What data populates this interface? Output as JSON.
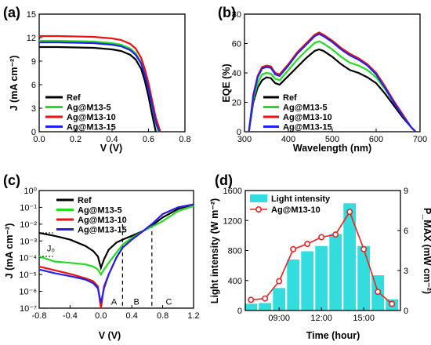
{
  "chart_data": [
    {
      "panel": "(a)",
      "type": "line",
      "xlabel": "V (V)",
      "ylabel": "J (mA cm⁻²)",
      "xlim": [
        0.0,
        0.8
      ],
      "ylim": [
        0,
        15
      ],
      "xticks": [
        "0.0",
        "0.2",
        "0.4",
        "0.6",
        "0.8"
      ],
      "yticks": [
        "0",
        "3",
        "6",
        "9",
        "12",
        "15"
      ],
      "legend_position": "bottom-left",
      "series": [
        {
          "name": "Ref",
          "color": "#000000",
          "x": [
            0,
            0.1,
            0.2,
            0.3,
            0.4,
            0.45,
            0.5,
            0.53,
            0.56,
            0.58,
            0.6,
            0.62,
            0.64
          ],
          "y": [
            10.8,
            10.8,
            10.75,
            10.7,
            10.5,
            10.3,
            9.8,
            9.2,
            8.0,
            6.5,
            4.5,
            2.2,
            0
          ]
        },
        {
          "name": "Ag@M13-5",
          "color": "#22dd22",
          "x": [
            0,
            0.1,
            0.2,
            0.3,
            0.4,
            0.45,
            0.5,
            0.53,
            0.56,
            0.58,
            0.6,
            0.62,
            0.64,
            0.655
          ],
          "y": [
            11.6,
            11.6,
            11.55,
            11.5,
            11.3,
            11.1,
            10.6,
            10.0,
            8.8,
            7.3,
            5.5,
            3.3,
            1.0,
            0
          ]
        },
        {
          "name": "Ag@M13-10",
          "color": "#ee1111",
          "x": [
            0,
            0.1,
            0.2,
            0.3,
            0.4,
            0.45,
            0.5,
            0.53,
            0.56,
            0.58,
            0.6,
            0.62,
            0.64,
            0.665
          ],
          "y": [
            12.2,
            12.2,
            12.15,
            12.1,
            11.9,
            11.7,
            11.2,
            10.6,
            9.4,
            8.0,
            6.2,
            4.0,
            1.8,
            0
          ]
        },
        {
          "name": "Ag@M13-15",
          "color": "#2222ee",
          "x": [
            0,
            0.1,
            0.2,
            0.3,
            0.4,
            0.45,
            0.5,
            0.53,
            0.56,
            0.58,
            0.6,
            0.62,
            0.64,
            0.66
          ],
          "y": [
            11.4,
            11.4,
            11.35,
            11.3,
            11.1,
            10.9,
            10.4,
            9.8,
            8.7,
            7.2,
            5.5,
            3.4,
            1.2,
            0
          ]
        }
      ]
    },
    {
      "panel": "(b)",
      "type": "line",
      "xlabel": "Wavelength (nm)",
      "ylabel": "EQE (%)",
      "xlim": [
        300,
        700
      ],
      "ylim": [
        0,
        80
      ],
      "xticks": [
        "300",
        "400",
        "500",
        "600",
        "700"
      ],
      "yticks": [
        "0",
        "20",
        "40",
        "60",
        "80"
      ],
      "legend_position": "bottom-left",
      "series": [
        {
          "name": "Ref",
          "color": "#000000",
          "x": [
            310,
            320,
            330,
            340,
            350,
            360,
            370,
            380,
            400,
            420,
            440,
            460,
            470,
            480,
            500,
            520,
            540,
            560,
            580,
            600,
            620,
            640,
            660,
            680,
            690
          ],
          "y": [
            0,
            20,
            30,
            35,
            37,
            36.5,
            33,
            32,
            38,
            44,
            50,
            55,
            56,
            55,
            51,
            46,
            42,
            40,
            37,
            33,
            26,
            18,
            10,
            3,
            0
          ]
        },
        {
          "name": "Ag@M13-5",
          "color": "#22dd22",
          "x": [
            310,
            320,
            330,
            340,
            350,
            360,
            370,
            380,
            400,
            420,
            440,
            460,
            470,
            480,
            500,
            520,
            540,
            560,
            580,
            600,
            620,
            640,
            660,
            680,
            690
          ],
          "y": [
            0,
            22,
            33,
            39,
            40,
            39.5,
            36,
            35,
            42,
            49,
            55,
            60.5,
            61.5,
            60,
            56,
            51,
            47,
            45,
            42,
            37,
            29,
            20,
            11,
            3,
            0
          ]
        },
        {
          "name": "Ag@M13-10",
          "color": "#ee1111",
          "x": [
            310,
            320,
            330,
            340,
            350,
            360,
            370,
            380,
            400,
            420,
            440,
            460,
            470,
            480,
            500,
            520,
            540,
            560,
            580,
            600,
            620,
            640,
            660,
            680,
            690
          ],
          "y": [
            0,
            25,
            38,
            44,
            45,
            44.5,
            40,
            39,
            46,
            54,
            60,
            66,
            67.5,
            66,
            62,
            57,
            53,
            50,
            46,
            40,
            31,
            21,
            12,
            3,
            0
          ]
        },
        {
          "name": "Ag@M13-15",
          "color": "#2222ee",
          "x": [
            310,
            320,
            330,
            340,
            350,
            360,
            370,
            380,
            400,
            420,
            440,
            460,
            470,
            480,
            500,
            520,
            540,
            560,
            580,
            600,
            620,
            640,
            660,
            680,
            690
          ],
          "y": [
            0,
            24,
            37,
            43,
            44,
            43.5,
            39,
            38,
            45,
            53,
            59,
            65,
            66.5,
            65,
            61,
            56,
            52,
            49,
            45,
            39,
            30,
            20,
            11,
            3,
            0
          ]
        }
      ]
    },
    {
      "panel": "(c)",
      "type": "line",
      "xlabel": "V (V)",
      "ylabel": "J (mA cm⁻²)",
      "yscale": "log",
      "xlim": [
        -0.8,
        1.2
      ],
      "ylim": [
        1e-07,
        1
      ],
      "xticks": [
        "-0.8",
        "-0.4",
        "0.0",
        "0.4",
        "0.8",
        "1.2"
      ],
      "yticks": [
        "10⁰",
        "10⁻¹",
        "10⁻²",
        "10⁻³",
        "10⁻⁴",
        "10⁻⁵",
        "10⁻⁶",
        "10⁻⁷"
      ],
      "legend_position": "top-left",
      "annotations": {
        "j0_label": "J₀",
        "regions": [
          "A",
          "B",
          "C"
        ],
        "region_boundaries_v": [
          0.28,
          0.66
        ]
      },
      "series": [
        {
          "name": "Ref",
          "color": "#000000",
          "x": [
            -0.8,
            -0.6,
            -0.4,
            -0.2,
            -0.1,
            -0.04,
            0.0,
            0.04,
            0.1,
            0.2,
            0.28,
            0.4,
            0.55,
            0.66,
            0.8,
            1.0,
            1.2
          ],
          "y": [
            0.003,
            0.002,
            0.0012,
            0.0005,
            0.00025,
            0.00012,
            2.5e-05,
            8e-05,
            0.0003,
            0.0008,
            0.0012,
            0.002,
            0.004,
            0.008,
            0.025,
            0.08,
            0.15
          ]
        },
        {
          "name": "Ag@M13-5",
          "color": "#22dd22",
          "x": [
            -0.8,
            -0.6,
            -0.4,
            -0.2,
            -0.1,
            -0.04,
            0.0,
            0.04,
            0.1,
            0.2,
            0.28,
            0.4,
            0.55,
            0.66,
            0.8,
            1.0,
            1.2
          ],
          "y": [
            0.00012,
            6e-05,
            5e-05,
            4e-05,
            3e-05,
            2e-05,
            1e-05,
            2e-05,
            5e-05,
            0.0002,
            0.0006,
            0.0015,
            0.004,
            0.007,
            0.015,
            0.06,
            0.12
          ]
        },
        {
          "name": "Ag@M13-10",
          "color": "#ee1111",
          "x": [
            -0.8,
            -0.6,
            -0.4,
            -0.2,
            -0.1,
            -0.04,
            0.0,
            0.04,
            0.1,
            0.2,
            0.28,
            0.4,
            0.55,
            0.66,
            0.8,
            1.0,
            1.2
          ],
          "y": [
            3e-05,
            1.8e-05,
            1.1e-05,
            6e-06,
            4e-06,
            2e-06,
            1e-07,
            2e-06,
            1e-05,
            0.0001,
            0.0004,
            0.0012,
            0.004,
            0.01,
            0.04,
            0.1,
            0.15
          ]
        },
        {
          "name": "Ag@M13-15",
          "color": "#2222ee",
          "x": [
            -0.8,
            -0.6,
            -0.4,
            -0.2,
            -0.1,
            -0.04,
            0.0,
            0.04,
            0.1,
            0.2,
            0.28,
            0.4,
            0.55,
            0.66,
            0.8,
            1.0,
            1.2
          ],
          "y": [
            2e-05,
            1.2e-05,
            8e-06,
            5e-06,
            3e-06,
            1.5e-06,
            2e-07,
            1.5e-06,
            1e-05,
            0.0001,
            0.0004,
            0.0012,
            0.004,
            0.01,
            0.04,
            0.1,
            0.15
          ]
        }
      ]
    },
    {
      "panel": "(d)",
      "type": "bar+line",
      "xlabel": "Time (hour)",
      "ylabel_left": "Light intensity (W m⁻²)",
      "ylabel_right": "P_MAX (mW cm⁻²)",
      "ylim_left": [
        0,
        1600
      ],
      "ylim_right": [
        0,
        9
      ],
      "xlim_hours": [
        6.6,
        17.6
      ],
      "xticks": [
        "09:00",
        "12:00",
        "15:00"
      ],
      "xtick_hours": [
        9,
        12,
        15
      ],
      "yticks_left": [
        "0",
        "400",
        "800",
        "1200",
        "1600"
      ],
      "yticks_right": [
        "0",
        "3",
        "6",
        "9"
      ],
      "legend_position": "top-left",
      "bars": {
        "name": "Light intensity",
        "color": "#33dddd",
        "x_hours": [
          7,
          8,
          9,
          10,
          11,
          12,
          13,
          14,
          15,
          16,
          17
        ],
        "values": [
          90,
          100,
          300,
          680,
          790,
          860,
          1020,
          1430,
          860,
          470,
          150
        ]
      },
      "line": {
        "name": "Ag@M13-10",
        "color": "#ee2222",
        "x_hours": [
          7,
          8,
          9,
          10,
          11,
          12,
          13,
          14,
          15,
          16,
          17
        ],
        "values": [
          0.8,
          0.9,
          2.2,
          4.6,
          5.0,
          5.5,
          5.7,
          7.4,
          4.6,
          1.4,
          0.5
        ]
      }
    }
  ]
}
